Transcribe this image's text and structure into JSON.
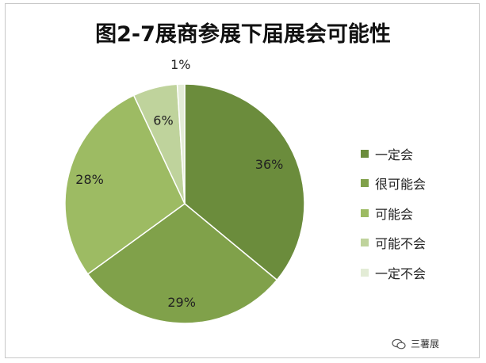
{
  "chart_data": {
    "type": "pie",
    "title": "图2-7展商参展下届展会可能性",
    "categories": [
      "一定会",
      "很可能会",
      "可能会",
      "可能不会",
      "一定不会"
    ],
    "values": [
      36,
      29,
      28,
      6,
      1
    ],
    "value_labels": [
      "36%",
      "29%",
      "28%",
      "6%",
      "1%"
    ],
    "colors": [
      "#6b8c3c",
      "#80a14a",
      "#9dbb63",
      "#bfd39c",
      "#e3ecd6"
    ],
    "legend_position": "right"
  },
  "watermark": {
    "text": "三薯展"
  }
}
